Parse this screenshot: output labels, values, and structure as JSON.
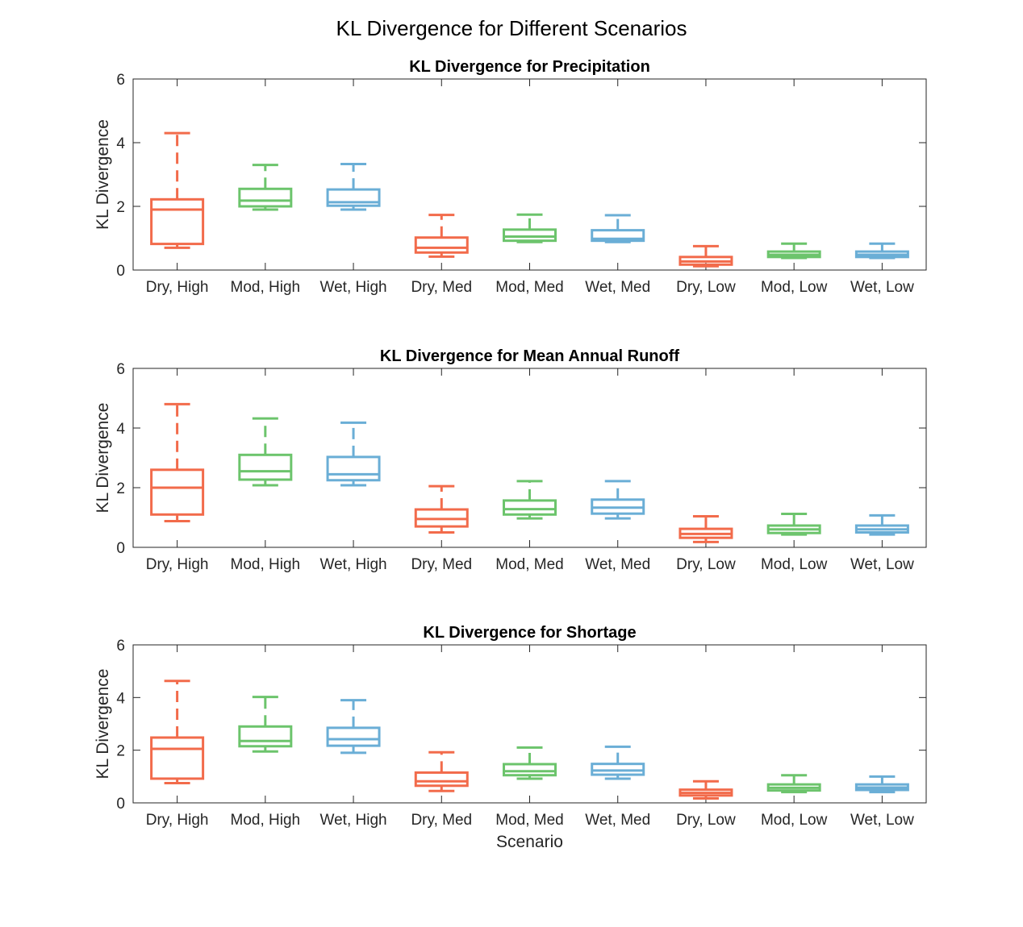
{
  "figure": {
    "title": "KL Divergence for Different Scenarios"
  },
  "chart_data": [
    {
      "type": "box",
      "title": "KL Divergence for Precipitation",
      "ylabel": "KL Divergence",
      "xlabel": "",
      "ylim": [
        0,
        6
      ],
      "yticks": [
        0,
        2,
        4,
        6
      ],
      "categories": [
        "Dry, High",
        "Mod, High",
        "Wet, High",
        "Dry, Med",
        "Mod, Med",
        "Wet, Med",
        "Dry, Low",
        "Mod, Low",
        "Wet, Low"
      ],
      "boxes": [
        {
          "min": 0.7,
          "q1": 0.82,
          "median": 1.9,
          "q3": 2.22,
          "max": 4.3
        },
        {
          "min": 1.9,
          "q1": 2.0,
          "median": 2.18,
          "q3": 2.55,
          "max": 3.3
        },
        {
          "min": 1.9,
          "q1": 2.02,
          "median": 2.13,
          "q3": 2.53,
          "max": 3.33
        },
        {
          "min": 0.42,
          "q1": 0.55,
          "median": 0.7,
          "q3": 1.02,
          "max": 1.73
        },
        {
          "min": 0.88,
          "q1": 0.92,
          "median": 1.05,
          "q3": 1.27,
          "max": 1.74
        },
        {
          "min": 0.88,
          "q1": 0.92,
          "median": 0.98,
          "q3": 1.25,
          "max": 1.72
        },
        {
          "min": 0.12,
          "q1": 0.17,
          "median": 0.27,
          "q3": 0.41,
          "max": 0.75
        },
        {
          "min": 0.38,
          "q1": 0.41,
          "median": 0.48,
          "q3": 0.58,
          "max": 0.83
        },
        {
          "min": 0.38,
          "q1": 0.41,
          "median": 0.48,
          "q3": 0.58,
          "max": 0.83
        }
      ]
    },
    {
      "type": "box",
      "title": "KL Divergence for Mean Annual Runoff",
      "ylabel": "KL Divergence",
      "xlabel": "",
      "ylim": [
        0,
        6
      ],
      "yticks": [
        0,
        2,
        4,
        6
      ],
      "categories": [
        "Dry, High",
        "Mod, High",
        "Wet, High",
        "Dry, Med",
        "Mod, Med",
        "Wet, Med",
        "Dry, Low",
        "Mod, Low",
        "Wet, Low"
      ],
      "boxes": [
        {
          "min": 0.88,
          "q1": 1.1,
          "median": 2.0,
          "q3": 2.6,
          "max": 4.8
        },
        {
          "min": 2.08,
          "q1": 2.27,
          "median": 2.55,
          "q3": 3.1,
          "max": 4.32
        },
        {
          "min": 2.08,
          "q1": 2.25,
          "median": 2.45,
          "q3": 3.03,
          "max": 4.18
        },
        {
          "min": 0.5,
          "q1": 0.7,
          "median": 0.95,
          "q3": 1.27,
          "max": 2.05
        },
        {
          "min": 0.97,
          "q1": 1.1,
          "median": 1.28,
          "q3": 1.57,
          "max": 2.22
        },
        {
          "min": 0.97,
          "q1": 1.13,
          "median": 1.33,
          "q3": 1.6,
          "max": 2.22
        },
        {
          "min": 0.18,
          "q1": 0.32,
          "median": 0.45,
          "q3": 0.62,
          "max": 1.04
        },
        {
          "min": 0.43,
          "q1": 0.48,
          "median": 0.6,
          "q3": 0.73,
          "max": 1.12
        },
        {
          "min": 0.43,
          "q1": 0.5,
          "median": 0.6,
          "q3": 0.73,
          "max": 1.07
        }
      ]
    },
    {
      "type": "box",
      "title": "KL Divergence for Shortage",
      "ylabel": "KL Divergence",
      "xlabel": "Scenario",
      "ylim": [
        0,
        6
      ],
      "yticks": [
        0,
        2,
        4,
        6
      ],
      "categories": [
        "Dry, High",
        "Mod, High",
        "Wet, High",
        "Dry, Med",
        "Mod, Med",
        "Wet, Med",
        "Dry, Low",
        "Mod, Low",
        "Wet, Low"
      ],
      "boxes": [
        {
          "min": 0.75,
          "q1": 0.92,
          "median": 2.05,
          "q3": 2.48,
          "max": 4.63
        },
        {
          "min": 1.95,
          "q1": 2.15,
          "median": 2.35,
          "q3": 2.9,
          "max": 4.02
        },
        {
          "min": 1.9,
          "q1": 2.17,
          "median": 2.42,
          "q3": 2.85,
          "max": 3.9
        },
        {
          "min": 0.45,
          "q1": 0.65,
          "median": 0.82,
          "q3": 1.15,
          "max": 1.92
        },
        {
          "min": 0.92,
          "q1": 1.05,
          "median": 1.2,
          "q3": 1.47,
          "max": 2.1
        },
        {
          "min": 0.92,
          "q1": 1.07,
          "median": 1.23,
          "q3": 1.48,
          "max": 2.13
        },
        {
          "min": 0.17,
          "q1": 0.28,
          "median": 0.38,
          "q3": 0.5,
          "max": 0.82
        },
        {
          "min": 0.41,
          "q1": 0.47,
          "median": 0.57,
          "q3": 0.7,
          "max": 1.05
        },
        {
          "min": 0.41,
          "q1": 0.49,
          "median": 0.58,
          "q3": 0.7,
          "max": 1.0
        }
      ]
    }
  ],
  "colors": {
    "dry": "#f26b4b",
    "mod": "#6cc46c",
    "wet": "#6aaed6"
  }
}
